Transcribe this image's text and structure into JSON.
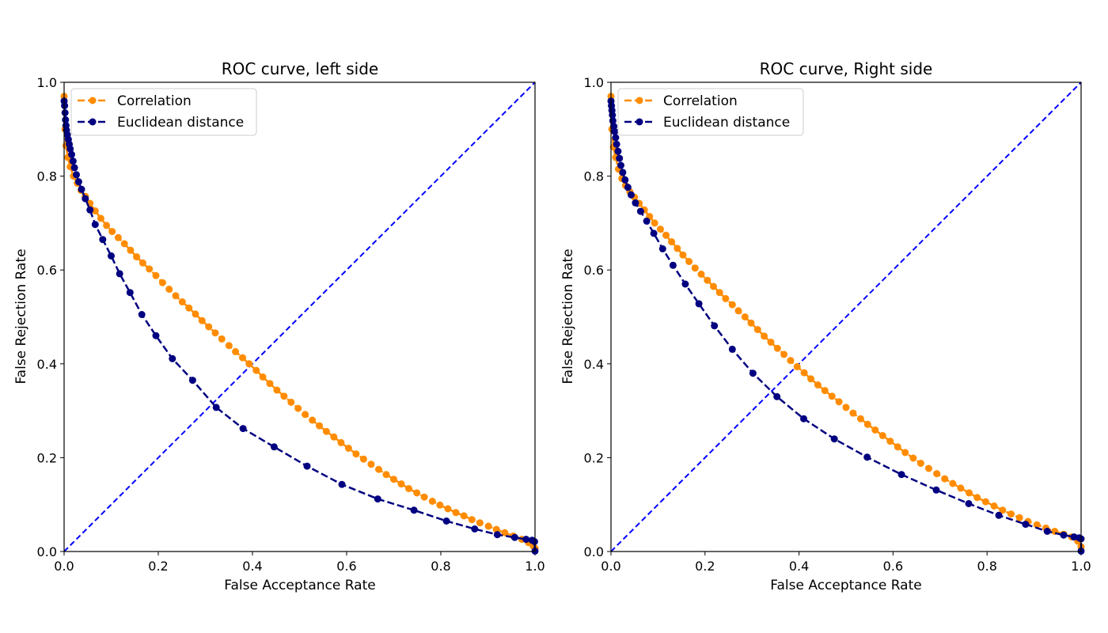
{
  "colors": {
    "correlation": "#ff8c00",
    "euclidean": "#000080",
    "diagonal": "#0000ff"
  },
  "chart_data": [
    {
      "type": "line",
      "title": "ROC curve, left side",
      "xlabel": "False Acceptance Rate",
      "ylabel": "False Rejection Rate",
      "xlim": [
        0,
        1
      ],
      "ylim": [
        0,
        1
      ],
      "xticks": [
        "0.0",
        "0.2",
        "0.4",
        "0.6",
        "0.8",
        "1.0"
      ],
      "yticks": [
        "0.0",
        "0.2",
        "0.4",
        "0.6",
        "0.8",
        "1.0"
      ],
      "grid": false,
      "legend_position": "top-left",
      "reference_line": {
        "x": [
          0,
          1
        ],
        "y": [
          0,
          1
        ]
      },
      "series": [
        {
          "name": "Correlation",
          "x": [
            0.0,
            0.002,
            0.004,
            0.008,
            0.013,
            0.02,
            0.028,
            0.036,
            0.045,
            0.055,
            0.066,
            0.078,
            0.09,
            0.102,
            0.115,
            0.128,
            0.141,
            0.154,
            0.167,
            0.181,
            0.195,
            0.209,
            0.223,
            0.237,
            0.251,
            0.265,
            0.279,
            0.293,
            0.307,
            0.321,
            0.335,
            0.35,
            0.364,
            0.379,
            0.393,
            0.408,
            0.422,
            0.437,
            0.452,
            0.467,
            0.482,
            0.497,
            0.512,
            0.527,
            0.542,
            0.557,
            0.573,
            0.588,
            0.604,
            0.62,
            0.636,
            0.652,
            0.668,
            0.684,
            0.7,
            0.716,
            0.732,
            0.749,
            0.765,
            0.782,
            0.798,
            0.815,
            0.832,
            0.849,
            0.866,
            0.883,
            0.901,
            0.918,
            0.936,
            0.954,
            0.972,
            0.986,
            0.996,
            1.0
          ],
          "y": [
            0.97,
            0.9,
            0.865,
            0.84,
            0.82,
            0.8,
            0.785,
            0.77,
            0.757,
            0.742,
            0.726,
            0.71,
            0.695,
            0.682,
            0.669,
            0.656,
            0.642,
            0.628,
            0.615,
            0.602,
            0.588,
            0.573,
            0.559,
            0.545,
            0.532,
            0.519,
            0.506,
            0.492,
            0.479,
            0.466,
            0.453,
            0.439,
            0.426,
            0.413,
            0.4,
            0.386,
            0.372,
            0.358,
            0.344,
            0.331,
            0.318,
            0.305,
            0.292,
            0.28,
            0.268,
            0.256,
            0.244,
            0.232,
            0.22,
            0.208,
            0.197,
            0.186,
            0.175,
            0.164,
            0.154,
            0.144,
            0.134,
            0.125,
            0.116,
            0.107,
            0.099,
            0.091,
            0.083,
            0.076,
            0.068,
            0.061,
            0.054,
            0.047,
            0.04,
            0.033,
            0.026,
            0.019,
            0.012,
            0.007
          ]
        },
        {
          "name": "Euclidean distance",
          "x": [
            0.0,
            0.001,
            0.002,
            0.003,
            0.004,
            0.005,
            0.007,
            0.009,
            0.011,
            0.013,
            0.016,
            0.019,
            0.022,
            0.026,
            0.031,
            0.037,
            0.045,
            0.055,
            0.066,
            0.082,
            0.1,
            0.118,
            0.14,
            0.165,
            0.195,
            0.23,
            0.273,
            0.323,
            0.38,
            0.446,
            0.516,
            0.59,
            0.666,
            0.743,
            0.812,
            0.872,
            0.92,
            0.957,
            0.981,
            0.994,
            0.999,
            1.0
          ],
          "y": [
            0.96,
            0.95,
            0.935,
            0.92,
            0.908,
            0.898,
            0.888,
            0.878,
            0.868,
            0.858,
            0.846,
            0.832,
            0.818,
            0.803,
            0.788,
            0.772,
            0.752,
            0.728,
            0.697,
            0.665,
            0.63,
            0.592,
            0.552,
            0.505,
            0.46,
            0.411,
            0.365,
            0.307,
            0.262,
            0.223,
            0.182,
            0.143,
            0.112,
            0.088,
            0.065,
            0.048,
            0.036,
            0.03,
            0.026,
            0.024,
            0.021,
            0.001
          ]
        }
      ]
    },
    {
      "type": "line",
      "title": "ROC curve, Right side",
      "xlabel": "False Acceptance Rate",
      "ylabel": "False Rejection Rate",
      "xlim": [
        0,
        1
      ],
      "ylim": [
        0,
        1
      ],
      "xticks": [
        "0.0",
        "0.2",
        "0.4",
        "0.6",
        "0.8",
        "1.0"
      ],
      "yticks": [
        "0.0",
        "0.2",
        "0.4",
        "0.6",
        "0.8",
        "1.0"
      ],
      "grid": false,
      "legend_position": "top-left",
      "reference_line": {
        "x": [
          0,
          1
        ],
        "y": [
          0,
          1
        ]
      },
      "series": [
        {
          "name": "Correlation",
          "x": [
            0.0,
            0.002,
            0.005,
            0.01,
            0.016,
            0.023,
            0.031,
            0.04,
            0.05,
            0.06,
            0.071,
            0.082,
            0.093,
            0.105,
            0.117,
            0.129,
            0.141,
            0.153,
            0.166,
            0.179,
            0.192,
            0.205,
            0.218,
            0.231,
            0.244,
            0.258,
            0.271,
            0.285,
            0.298,
            0.312,
            0.326,
            0.34,
            0.354,
            0.368,
            0.382,
            0.396,
            0.411,
            0.425,
            0.44,
            0.455,
            0.47,
            0.485,
            0.5,
            0.515,
            0.531,
            0.546,
            0.562,
            0.578,
            0.594,
            0.61,
            0.626,
            0.643,
            0.659,
            0.676,
            0.693,
            0.71,
            0.727,
            0.744,
            0.762,
            0.779,
            0.797,
            0.815,
            0.833,
            0.851,
            0.869,
            0.887,
            0.906,
            0.925,
            0.944,
            0.963,
            0.98,
            0.993,
            1.0
          ],
          "y": [
            0.97,
            0.9,
            0.862,
            0.84,
            0.815,
            0.795,
            0.78,
            0.767,
            0.755,
            0.742,
            0.728,
            0.714,
            0.7,
            0.687,
            0.674,
            0.66,
            0.646,
            0.632,
            0.618,
            0.604,
            0.591,
            0.578,
            0.565,
            0.552,
            0.539,
            0.526,
            0.513,
            0.5,
            0.487,
            0.473,
            0.459,
            0.446,
            0.433,
            0.42,
            0.407,
            0.394,
            0.381,
            0.368,
            0.355,
            0.343,
            0.331,
            0.319,
            0.307,
            0.295,
            0.283,
            0.271,
            0.259,
            0.247,
            0.235,
            0.223,
            0.211,
            0.199,
            0.188,
            0.177,
            0.166,
            0.155,
            0.145,
            0.135,
            0.125,
            0.115,
            0.106,
            0.097,
            0.088,
            0.08,
            0.072,
            0.064,
            0.057,
            0.05,
            0.043,
            0.037,
            0.031,
            0.022,
            0.01
          ]
        },
        {
          "name": "Euclidean distance",
          "x": [
            0.0,
            0.001,
            0.002,
            0.003,
            0.004,
            0.006,
            0.008,
            0.01,
            0.012,
            0.015,
            0.018,
            0.021,
            0.025,
            0.03,
            0.036,
            0.043,
            0.052,
            0.063,
            0.076,
            0.091,
            0.11,
            0.132,
            0.158,
            0.187,
            0.22,
            0.258,
            0.302,
            0.353,
            0.41,
            0.475,
            0.545,
            0.618,
            0.692,
            0.761,
            0.825,
            0.882,
            0.928,
            0.963,
            0.985,
            0.996,
            1.0,
            1.0
          ],
          "y": [
            0.96,
            0.95,
            0.94,
            0.93,
            0.918,
            0.906,
            0.895,
            0.882,
            0.868,
            0.853,
            0.838,
            0.823,
            0.808,
            0.792,
            0.776,
            0.76,
            0.743,
            0.725,
            0.704,
            0.678,
            0.645,
            0.61,
            0.57,
            0.528,
            0.481,
            0.431,
            0.38,
            0.33,
            0.283,
            0.24,
            0.201,
            0.164,
            0.131,
            0.102,
            0.077,
            0.058,
            0.043,
            0.035,
            0.031,
            0.029,
            0.027,
            0.001
          ]
        }
      ]
    }
  ]
}
